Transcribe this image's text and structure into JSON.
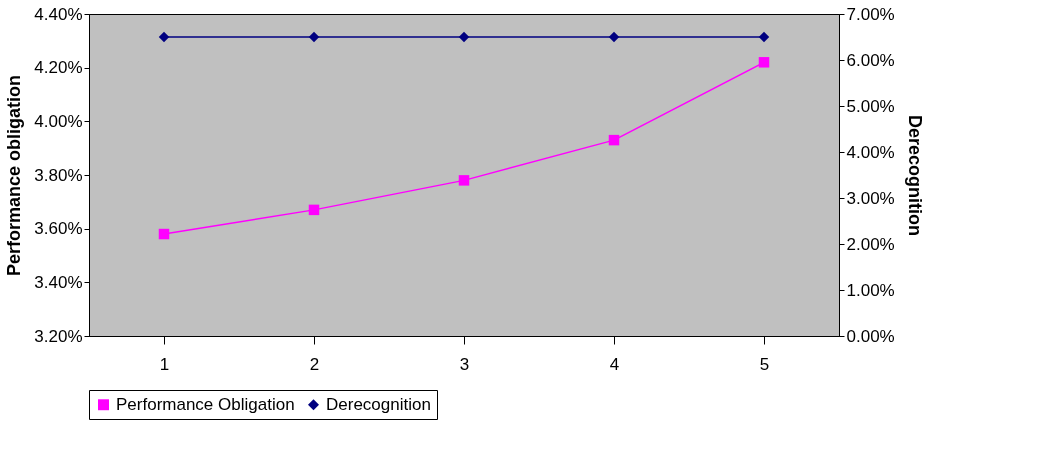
{
  "chart_data": {
    "type": "line",
    "categories": [
      "1",
      "2",
      "3",
      "4",
      "5"
    ],
    "series": [
      {
        "name": "Performance Obligation",
        "color": "#ff00ff",
        "marker": "square",
        "values": [
          3.58,
          3.67,
          3.78,
          3.93,
          4.22
        ]
      },
      {
        "name": "Derecognition",
        "color": "#000080",
        "marker": "diamond",
        "axis": "y2",
        "values": [
          6.5,
          6.5,
          6.5,
          6.5,
          6.5
        ]
      }
    ],
    "ylabel": "Performance obligation",
    "y2label": "Derecognition",
    "ylim": [
      3.2,
      4.4
    ],
    "yticks": [
      {
        "value": 3.2,
        "label": "3.20%"
      },
      {
        "value": 3.4,
        "label": "3.40%"
      },
      {
        "value": 3.6,
        "label": "3.60%"
      },
      {
        "value": 3.8,
        "label": "3.80%"
      },
      {
        "value": 4.0,
        "label": "4.00%"
      },
      {
        "value": 4.2,
        "label": "4.20%"
      },
      {
        "value": 4.4,
        "label": "4.40%"
      }
    ],
    "y2lim": [
      0,
      7
    ],
    "y2ticks": [
      {
        "value": 0,
        "label": "0.00%"
      },
      {
        "value": 1,
        "label": "1.00%"
      },
      {
        "value": 2,
        "label": "2.00%"
      },
      {
        "value": 3,
        "label": "3.00%"
      },
      {
        "value": 4,
        "label": "4.00%"
      },
      {
        "value": 5,
        "label": "5.00%"
      },
      {
        "value": 6,
        "label": "6.00%"
      },
      {
        "value": 7,
        "label": "7.00%"
      }
    ],
    "grid": false,
    "legend": "bottom",
    "line_style": "solid"
  }
}
